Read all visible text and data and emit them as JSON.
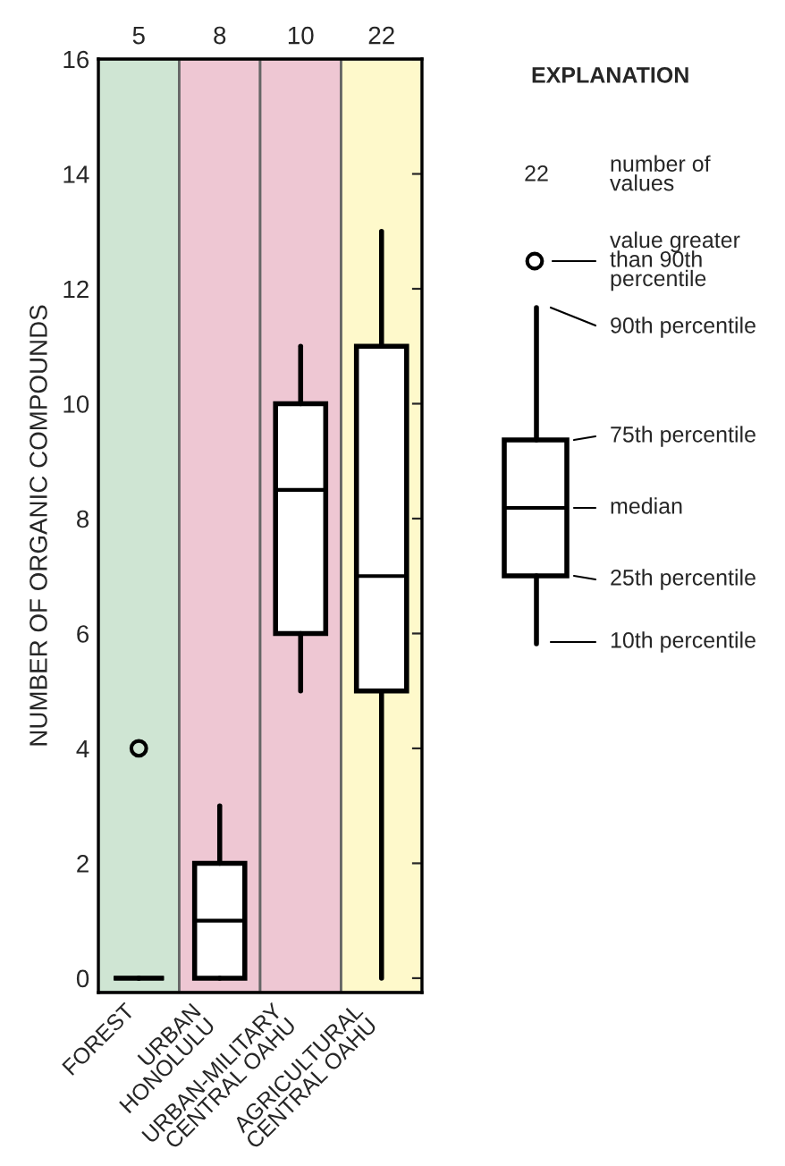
{
  "chart_data": {
    "type": "box",
    "categories": [
      "FOREST",
      "URBAN\nHONOLULU",
      "URBAN-MILITARY\nCENTRAL OAHU",
      "AGRICULTURAL\nCENTRAL OAHU"
    ],
    "boxes": [
      {
        "low": 0,
        "q1": 0,
        "median": 0,
        "q3": 0,
        "high": 0,
        "outliers": [
          4
        ]
      },
      {
        "low": 0,
        "q1": 0,
        "median": 1,
        "q3": 2,
        "high": 3
      },
      {
        "low": 5,
        "q1": 6,
        "median": 8.5,
        "q3": 10,
        "high": 11
      },
      {
        "low": 0,
        "q1": 5,
        "median": 7,
        "q3": 11,
        "high": 13
      }
    ],
    "ylabel": "NUMBER OF ORGANIC COMPOUNDS",
    "ylim": [
      -0.25,
      16
    ],
    "yticks": [
      0,
      2,
      4,
      6,
      8,
      10,
      12,
      14,
      16
    ],
    "annotations": [
      "5",
      "8",
      "10",
      "22",
      "EXPLANATION",
      "22",
      "number of\nvalues",
      "value greater\nthan 90th\npercentile",
      "90th percentile",
      "75th percentile",
      "median",
      "25th percentile",
      "10th percentile"
    ],
    "grid": false,
    "legend": false
  }
}
